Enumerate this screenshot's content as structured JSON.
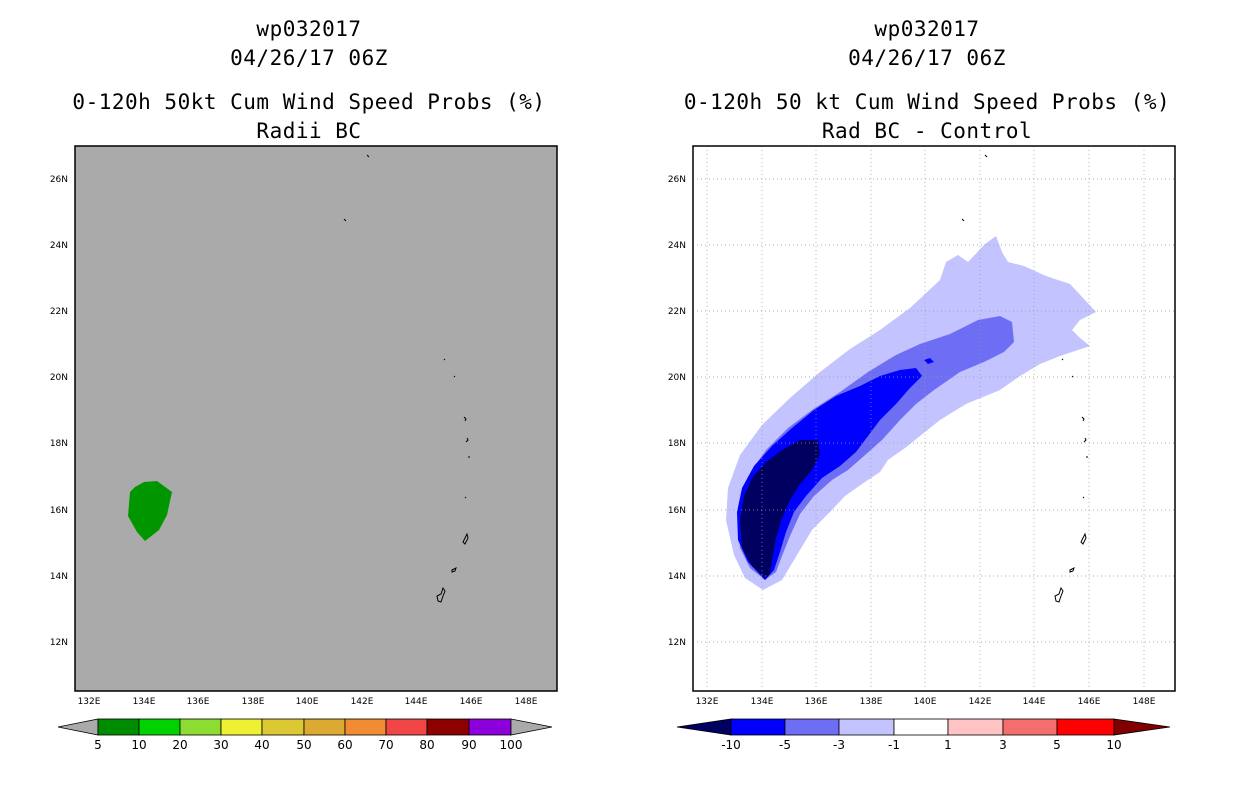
{
  "left_panel": {
    "storm_id": "wp032017",
    "datetime": "04/26/17 06Z",
    "product": "0-120h 50kt Cum Wind Speed Probs (%)",
    "subtitle": "Radii BC",
    "background_color": "#aaaaaa",
    "colorbar": {
      "labels": [
        "5",
        "10",
        "20",
        "30",
        "40",
        "50",
        "60",
        "70",
        "80",
        "90",
        "100"
      ],
      "colors": [
        "#008c00",
        "#00d200",
        "#8cdc32",
        "#f0f032",
        "#dcc832",
        "#dcaa32",
        "#f08c32",
        "#f04646",
        "#8c0000",
        "#8c00dc"
      ]
    }
  },
  "right_panel": {
    "storm_id": "wp032017",
    "datetime": "04/26/17 06Z",
    "product": "0-120h 50 kt Cum Wind Speed Probs (%)",
    "subtitle": "Rad BC - Control",
    "colorbar": {
      "labels": [
        "-10",
        "-5",
        "-3",
        "-1",
        "1",
        "3",
        "5",
        "10"
      ],
      "colors": [
        "#000060",
        "#0000ff",
        "#6e6ef5",
        "#c3c3ff",
        "#ffffff",
        "#ffc3c3",
        "#f56e6e",
        "#ff0000",
        "#800000"
      ]
    }
  },
  "map_axes": {
    "lon_ticks": [
      "132E",
      "134E",
      "136E",
      "138E",
      "140E",
      "142E",
      "144E",
      "146E",
      "148E"
    ],
    "lat_ticks": [
      "12N",
      "14N",
      "16N",
      "18N",
      "20N",
      "22N",
      "24N",
      "26N"
    ]
  },
  "layers": {
    "left_prob_5_10": "green 5-10% probability area near 16N 134E",
    "right_diff": [
      "-10 core",
      "-5",
      "-3",
      "-1 outer envelope"
    ]
  },
  "icons": [
    "islands-outline-icon"
  ]
}
